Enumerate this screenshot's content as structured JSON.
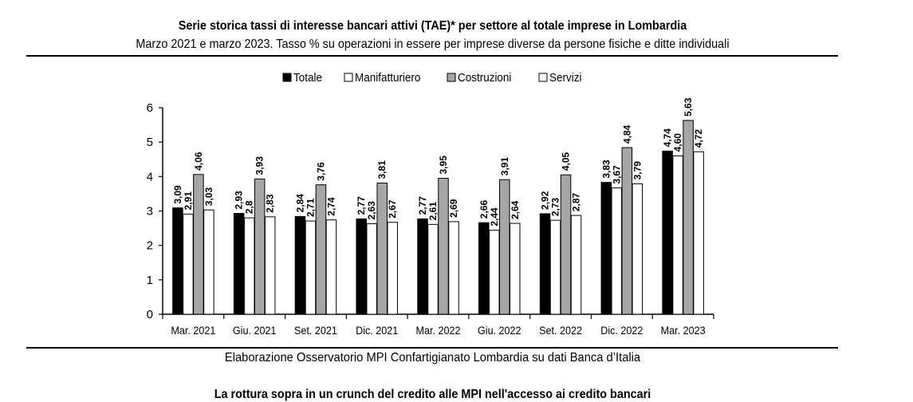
{
  "header": {
    "title": "Serie storica tassi di interesse bancari attivi (TAE)* per settore al totale imprese in Lombardia",
    "subtitle": "Marzo 2021 e marzo 2023. Tasso % su operazioni in essere per imprese diverse da persone fisiche e ditte individuali"
  },
  "footer": {
    "source": "Elaborazione Osservatorio MPI Confartigianato Lombardia su dati Banca d’Italia",
    "next_heading_partial": "La rottura sopra in un crunch del credito alle MPI nell'accesso ai credito bancari"
  },
  "colors": {
    "Totale": "#000000",
    "Manifatturiero": "#ffffff",
    "Costruzioni": "#a6a6a6",
    "Servizi": "#ffffff"
  },
  "chart_data": {
    "type": "bar",
    "categories": [
      "Mar. 2021",
      "Giu. 2021",
      "Set. 2021",
      "Dic. 2021",
      "Mar. 2022",
      "Giu. 2022",
      "Set. 2022",
      "Dic. 2022",
      "Mar. 2023"
    ],
    "series": [
      {
        "name": "Totale",
        "values": [
          3.09,
          2.93,
          2.84,
          2.77,
          2.77,
          2.66,
          2.92,
          3.83,
          4.74
        ],
        "labels": [
          "3,09",
          "2,93",
          "2,84",
          "2,77",
          "2,77",
          "2,66",
          "2,92",
          "3,83",
          "4,74"
        ]
      },
      {
        "name": "Manifatturiero",
        "values": [
          2.91,
          2.8,
          2.71,
          2.63,
          2.61,
          2.44,
          2.73,
          3.67,
          4.6
        ],
        "labels": [
          "2,91",
          "2,8",
          "2,71",
          "2,63",
          "2,61",
          "2,44",
          "2,73",
          "3,67",
          "4,60"
        ]
      },
      {
        "name": "Costruzioni",
        "values": [
          4.06,
          3.93,
          3.76,
          3.81,
          3.95,
          3.91,
          4.05,
          4.84,
          5.63
        ],
        "labels": [
          "4,06",
          "3,93",
          "3,76",
          "3,81",
          "3,95",
          "3,91",
          "4,05",
          "4,84",
          "5,63"
        ]
      },
      {
        "name": "Servizi",
        "values": [
          3.03,
          2.83,
          2.74,
          2.67,
          2.69,
          2.64,
          2.87,
          3.79,
          4.72
        ],
        "labels": [
          "3,03",
          "2,83",
          "2,74",
          "2,67",
          "2,69",
          "2,64",
          "2,87",
          "3,79",
          "4,72"
        ]
      }
    ],
    "yticks": [
      "0",
      "1",
      "2",
      "3",
      "4",
      "5",
      "6"
    ],
    "ylim": [
      0,
      6
    ],
    "grid": false,
    "legend_position": "top-center",
    "xlabel": "",
    "ylabel": ""
  }
}
